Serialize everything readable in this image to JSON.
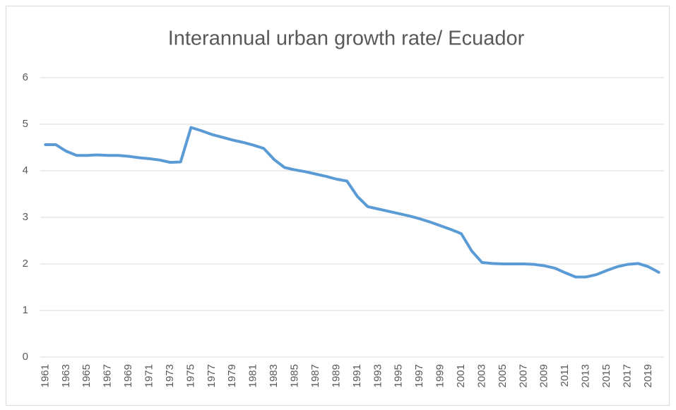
{
  "chart_data": {
    "type": "line",
    "title": "Interannual urban growth rate/ Ecuador",
    "categories": [
      "1961",
      null,
      "1963",
      null,
      "1965",
      null,
      "1967",
      null,
      "1969",
      null,
      "1971",
      null,
      "1973",
      null,
      "1975",
      null,
      "1977",
      null,
      "1979",
      null,
      "1981",
      null,
      "1983",
      null,
      "1985",
      null,
      "1987",
      null,
      "1989",
      null,
      "1991",
      null,
      "1993",
      null,
      "1995",
      null,
      "1997",
      null,
      "1999",
      null,
      "2001",
      null,
      "2003",
      null,
      "2005",
      null,
      "2007",
      null,
      "2009",
      null,
      "2011",
      null,
      "2013",
      null,
      "2015",
      null,
      "2017",
      null,
      "2019",
      null
    ],
    "series": [
      {
        "name": "Interannual urban growth rate",
        "color": "#5b9bd5",
        "values": [
          4.56,
          4.56,
          4.42,
          4.33,
          4.33,
          4.34,
          4.33,
          4.33,
          4.31,
          4.28,
          4.26,
          4.23,
          4.18,
          4.19,
          4.93,
          4.86,
          4.78,
          4.72,
          4.66,
          4.61,
          4.55,
          4.48,
          4.24,
          4.07,
          4.02,
          3.98,
          3.93,
          3.88,
          3.82,
          3.78,
          3.45,
          3.23,
          3.18,
          3.13,
          3.08,
          3.03,
          2.97,
          2.9,
          2.82,
          2.74,
          2.65,
          2.28,
          2.03,
          2.01,
          2.0,
          2.0,
          2.0,
          1.99,
          1.96,
          1.91,
          1.81,
          1.72,
          1.72,
          1.77,
          1.86,
          1.94,
          1.99,
          2.01,
          1.94,
          1.82
        ]
      }
    ],
    "ylim": [
      0,
      6
    ],
    "yticks": [
      0,
      1,
      2,
      3,
      4,
      5,
      6
    ],
    "grid": true
  }
}
